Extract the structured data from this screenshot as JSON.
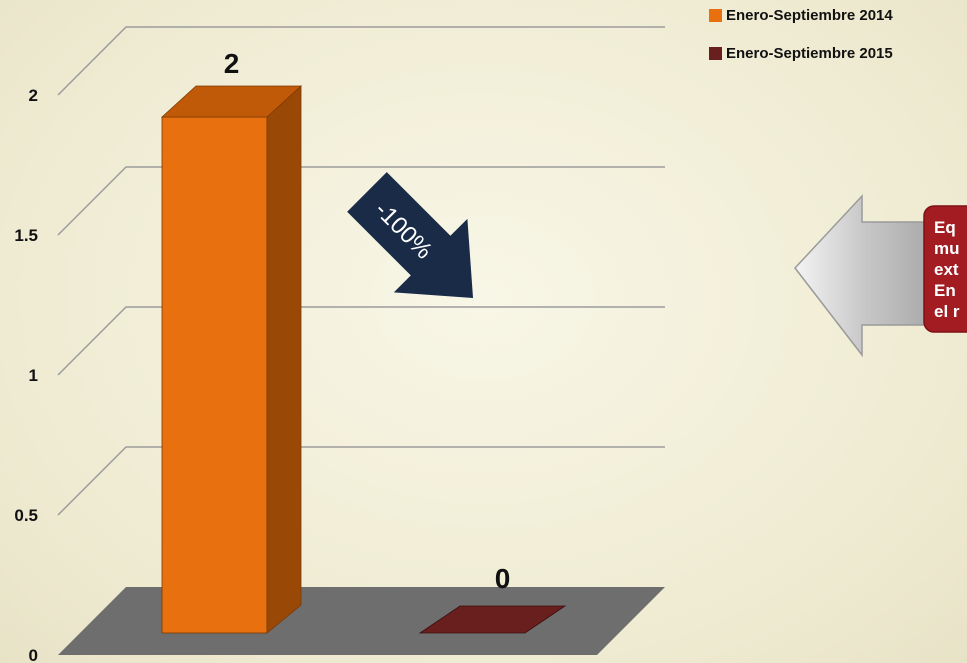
{
  "chart_data": {
    "type": "bar",
    "categories": [
      "Enero-Septiembre 2014",
      "Enero-Septiembre 2015"
    ],
    "values": [
      2,
      0
    ],
    "data_labels": [
      "2",
      "0"
    ],
    "y_ticks": [
      "0",
      "0.5",
      "1",
      "1.5",
      "2"
    ],
    "ylim": [
      0,
      2.5
    ],
    "grid": true,
    "legend_position": "top-right",
    "colors": [
      "#e8700f",
      "#6a1f1f"
    ],
    "annotation": "-100%",
    "annotation_color": "#1a2b48",
    "callout_lines": [
      "Eq",
      "mu",
      "ext",
      "En",
      "el r"
    ],
    "callout_color": "#a21c22"
  }
}
